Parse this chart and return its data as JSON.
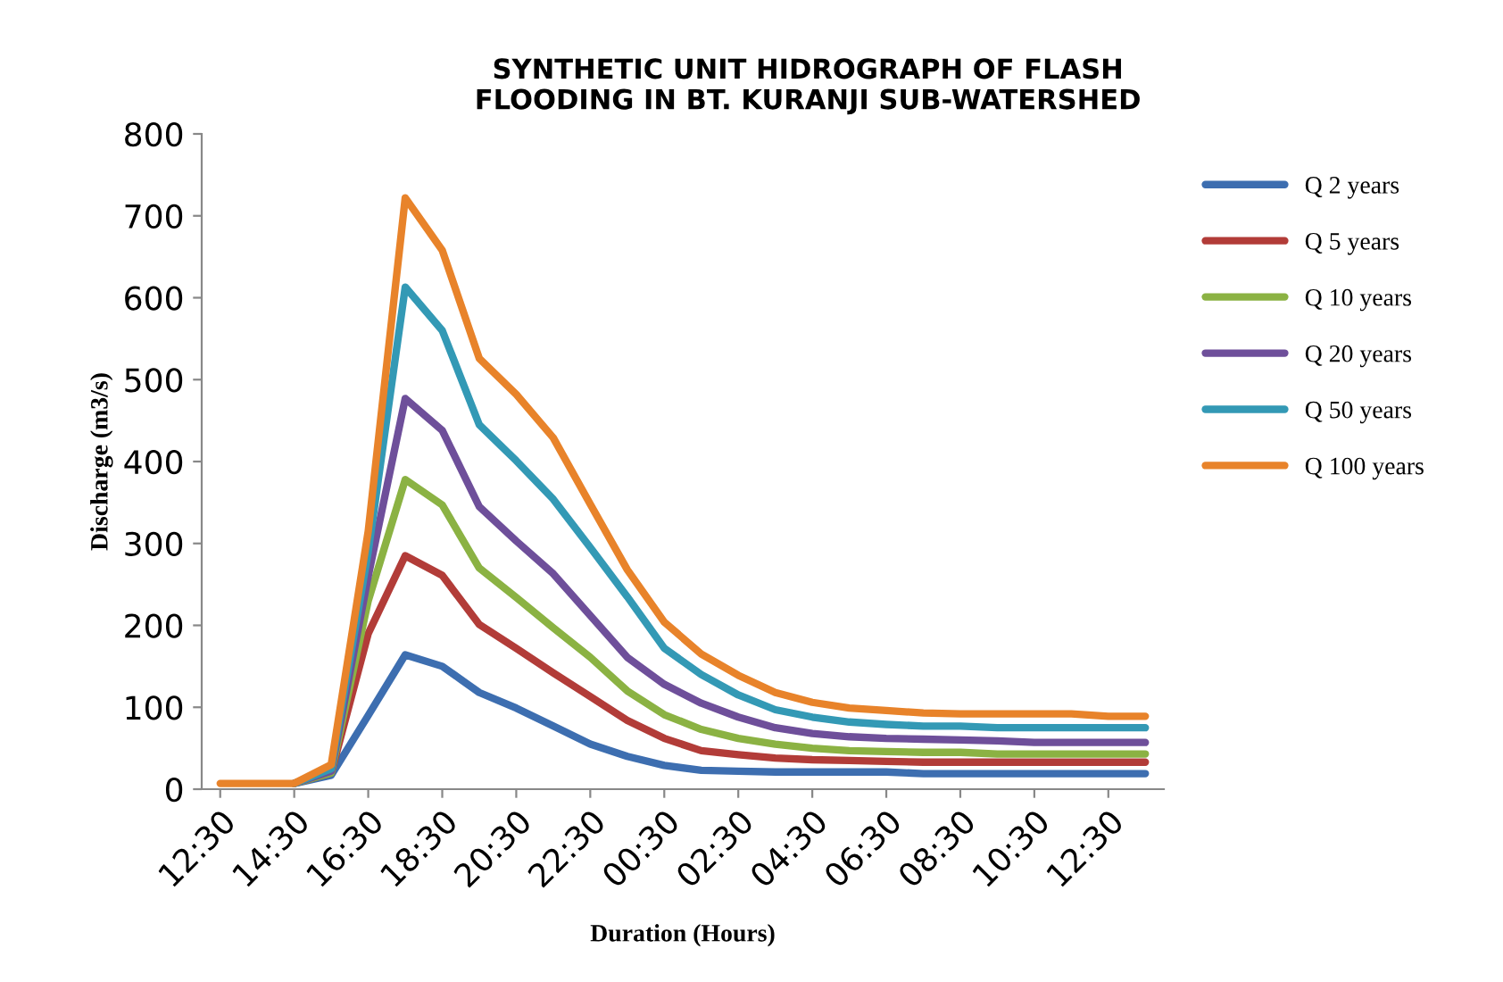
{
  "chart_data": {
    "type": "line",
    "title": "SYNTHETIC UNIT HIDROGRAPH OF FLASH\nFLOODING IN BT. KURANJI SUB-WATERSHED",
    "xlabel": "Duration (Hours)",
    "ylabel": "Discharge (m3/s)",
    "categories": [
      "12:30",
      null,
      "14:30",
      null,
      "16:30",
      null,
      "18:30",
      null,
      "20:30",
      null,
      "22:30",
      null,
      "00:30",
      null,
      "02:30",
      null,
      "04:30",
      null,
      "06:30",
      null,
      "08:30",
      null,
      "10:30",
      null,
      "12:30",
      null
    ],
    "series": [
      {
        "name": "Q 2 years",
        "color": "#3d6eb0",
        "values": [
          null,
          null,
          7,
          17,
          90,
          164,
          150,
          118,
          99,
          77,
          55,
          40,
          29,
          23,
          22,
          21,
          21,
          21,
          21,
          19,
          19,
          19,
          19,
          19,
          19,
          19
        ]
      },
      {
        "name": "Q 5 years",
        "color": "#b23c38",
        "values": [
          null,
          null,
          7,
          20,
          190,
          285,
          261,
          201,
          172,
          142,
          113,
          84,
          62,
          47,
          42,
          38,
          36,
          35,
          34,
          33,
          33,
          33,
          33,
          33,
          33,
          33
        ]
      },
      {
        "name": "Q 10 years",
        "color": "#8bb243",
        "values": [
          null,
          null,
          7,
          20,
          230,
          378,
          347,
          270,
          234,
          197,
          161,
          120,
          91,
          73,
          62,
          55,
          50,
          47,
          46,
          45,
          45,
          43,
          43,
          43,
          43,
          43
        ]
      },
      {
        "name": "Q 20 years",
        "color": "#6e4f9a",
        "values": [
          null,
          null,
          7,
          22,
          260,
          477,
          438,
          345,
          303,
          263,
          212,
          161,
          128,
          105,
          88,
          75,
          68,
          64,
          62,
          61,
          60,
          59,
          57,
          57,
          57,
          57
        ]
      },
      {
        "name": "Q 50 years",
        "color": "#3399b5",
        "values": [
          null,
          null,
          7,
          25,
          290,
          613,
          560,
          445,
          401,
          354,
          295,
          235,
          172,
          140,
          115,
          97,
          88,
          82,
          79,
          77,
          77,
          75,
          75,
          75,
          75,
          75
        ]
      },
      {
        "name": "Q 100 years",
        "color": "#e8832a",
        "values": [
          7,
          7,
          7,
          30,
          315,
          722,
          658,
          526,
          482,
          429,
          348,
          268,
          204,
          165,
          139,
          118,
          106,
          99,
          96,
          93,
          92,
          92,
          92,
          92,
          89,
          89
        ]
      }
    ],
    "ylim": [
      0,
      800
    ],
    "yticks": [
      0,
      100,
      200,
      300,
      400,
      500,
      600,
      700,
      800
    ],
    "grid": false,
    "legend": "right",
    "marker": "none",
    "line_style": "solid"
  }
}
